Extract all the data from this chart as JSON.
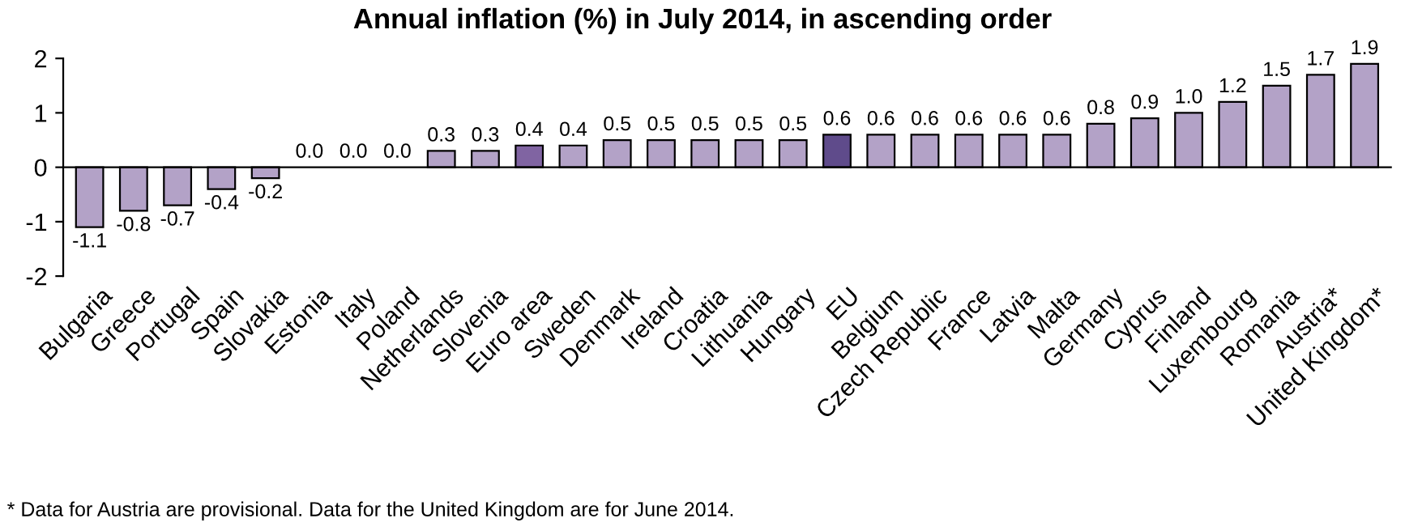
{
  "chart_data": {
    "type": "bar",
    "title": "Annual inflation (%) in July 2014, in ascending order",
    "categories": [
      "Bulgaria",
      "Greece",
      "Portugal",
      "Spain",
      "Slovakia",
      "Estonia",
      "Italy",
      "Poland",
      "Netherlands",
      "Slovenia",
      "Euro area",
      "Sweden",
      "Denmark",
      "Ireland",
      "Croatia",
      "Lithuania",
      "Hungary",
      "EU",
      "Belgium",
      "Czech Republic",
      "France",
      "Latvia",
      "Malta",
      "Germany",
      "Cyprus",
      "Finland",
      "Luxembourg",
      "Romania",
      "Austria*",
      "United Kingdom*"
    ],
    "values": [
      -1.1,
      -0.8,
      -0.7,
      -0.4,
      -0.2,
      0.0,
      0.0,
      0.0,
      0.3,
      0.3,
      0.4,
      0.4,
      0.5,
      0.5,
      0.5,
      0.5,
      0.5,
      0.6,
      0.6,
      0.6,
      0.6,
      0.6,
      0.6,
      0.8,
      0.9,
      1.0,
      1.2,
      1.5,
      1.7,
      1.9
    ],
    "colors": [
      "#b3a2c7",
      "#b3a2c7",
      "#b3a2c7",
      "#b3a2c7",
      "#b3a2c7",
      "#b3a2c7",
      "#b3a2c7",
      "#b3a2c7",
      "#b3a2c7",
      "#b3a2c7",
      "#8064a2",
      "#b3a2c7",
      "#b3a2c7",
      "#b3a2c7",
      "#b3a2c7",
      "#b3a2c7",
      "#b3a2c7",
      "#5f4b8b",
      "#b3a2c7",
      "#b3a2c7",
      "#b3a2c7",
      "#b3a2c7",
      "#b3a2c7",
      "#b3a2c7",
      "#b3a2c7",
      "#b3a2c7",
      "#b3a2c7",
      "#b3a2c7",
      "#b3a2c7",
      "#b3a2c7"
    ],
    "value_labels": [
      "-1.1",
      "-0.8",
      "-0.7",
      "-0.4",
      "-0.2",
      "0.0",
      "0.0",
      "0.0",
      "0.3",
      "0.3",
      "0.4",
      "0.4",
      "0.5",
      "0.5",
      "0.5",
      "0.5",
      "0.5",
      "0.6",
      "0.6",
      "0.6",
      "0.6",
      "0.6",
      "0.6",
      "0.8",
      "0.9",
      "1.0",
      "1.2",
      "1.5",
      "1.7",
      "1.9"
    ],
    "ylim": [
      -2,
      2
    ],
    "yticks": [
      -2,
      -1,
      0,
      1,
      2
    ],
    "annotations": [
      "* Data for Austria are provisional. Data for the United Kingdom are for June 2014."
    ]
  }
}
